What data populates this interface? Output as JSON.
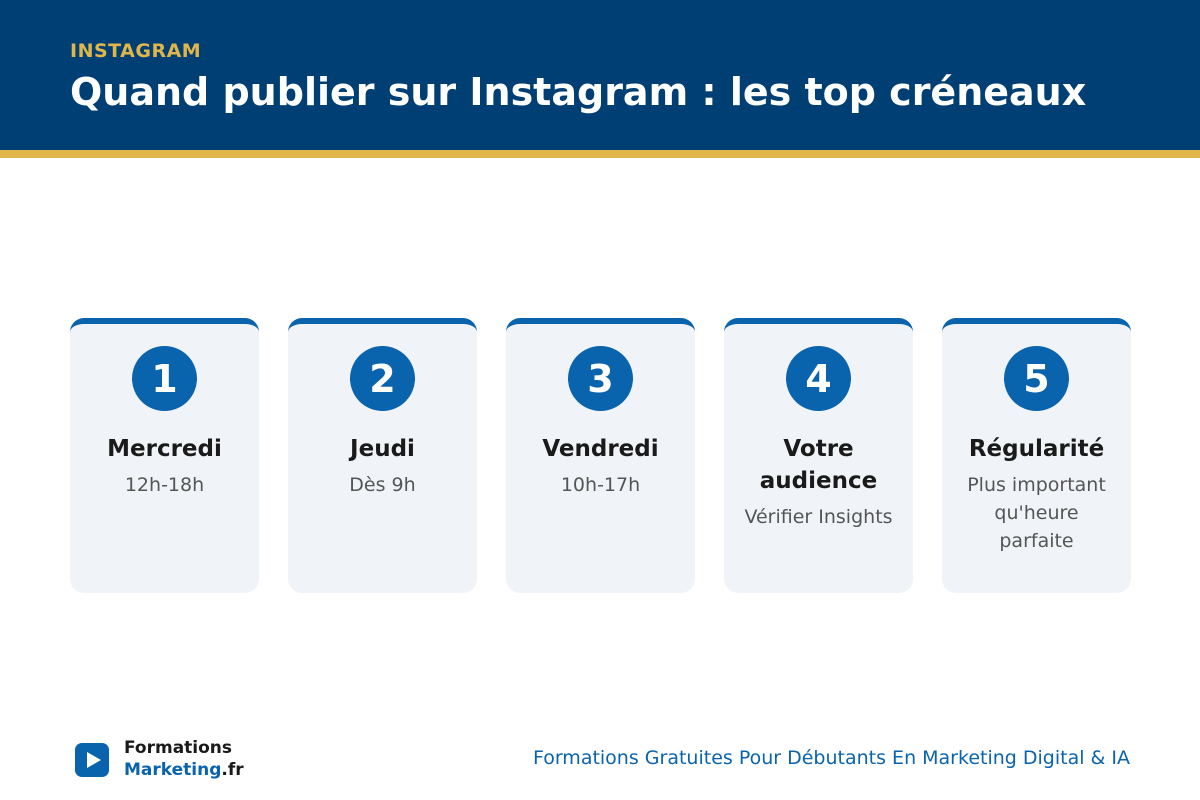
{
  "header": {
    "eyebrow": "INSTAGRAM",
    "title": "Quand publier sur Instagram : les top créneaux"
  },
  "cards": [
    {
      "number": 1,
      "title": "Mercredi",
      "text": "12h-18h"
    },
    {
      "number": 2,
      "title": "Jeudi",
      "text": "Dès 9h"
    },
    {
      "number": 3,
      "title": "Vendredi",
      "text": "10h-17h"
    },
    {
      "number": 4,
      "title": "Votre audience",
      "text": "Vérifier Insights"
    },
    {
      "number": 5,
      "title": "Régularité",
      "text": "Plus important qu'heure parfaite"
    }
  ],
  "footer": {
    "brand_top": "Formations",
    "brand_main": "Marketing",
    "brand_suffix": ".fr",
    "tagline": "Formations Gratuites Pour Débutants En Marketing Digital & IA"
  }
}
